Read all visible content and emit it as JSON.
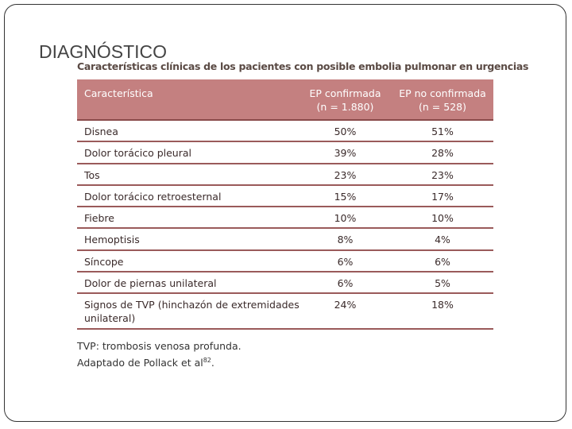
{
  "slide_title": "DIAGNÓSTICO",
  "table": {
    "caption": "Características clínicas de los pacientes con posible embolia pulmonar en urgencias",
    "header": [
      [
        "Característica"
      ],
      [
        "EP confirmada",
        "(n = 1.880)"
      ],
      [
        "EP no confirmada",
        "(n = 528)"
      ]
    ],
    "rows": [
      [
        [
          "Disnea"
        ],
        "50%",
        "51%"
      ],
      [
        [
          "Dolor torácico pleural"
        ],
        "39%",
        "28%"
      ],
      [
        [
          "Tos"
        ],
        "23%",
        "23%"
      ],
      [
        [
          "Dolor torácico retroesternal"
        ],
        "15%",
        "17%"
      ],
      [
        [
          "Fiebre"
        ],
        "10%",
        "10%"
      ],
      [
        [
          "Hemoptisis"
        ],
        "8%",
        "4%"
      ],
      [
        [
          "Síncope"
        ],
        "6%",
        "6%"
      ],
      [
        [
          "Dolor de piernas unilateral"
        ],
        "6%",
        "5%"
      ],
      [
        [
          "Signos de TVP (hinchazón de extremidades",
          "unilateral)"
        ],
        "24%",
        "18%"
      ]
    ]
  },
  "footnote": {
    "line1": "TVP: trombosis venosa profunda.",
    "line2_text": "Adaptado de Pollack et al",
    "line2_sup": "82",
    "line2_end": "."
  }
}
